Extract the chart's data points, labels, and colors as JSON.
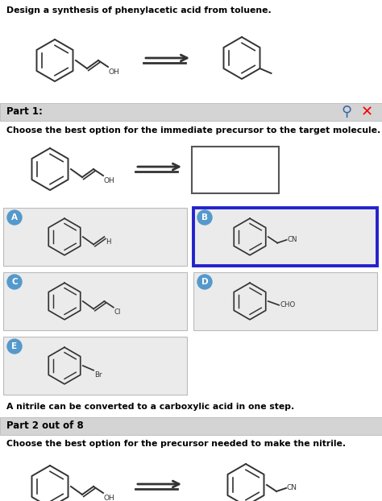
{
  "bg_color": "#ffffff",
  "page_title": "Design a synthesis of phenylacetic acid from toluene.",
  "part1_label": "Part 1:",
  "part1_bg": "#d8d8d8",
  "question1": "Choose the best option for the immediate precursor to the target molecule.",
  "note1": "A nitrile can be converted to a carboxylic acid in one step.",
  "part2_label": "Part 2 out of 8",
  "part2_bg": "#d8d8d8",
  "question2": "Choose the best option for the precursor needed to make the nitrile.",
  "answer_b_border": "#2222cc",
  "answer_circle_bg": "#5599cc",
  "fig_width": 4.74,
  "fig_height": 6.22,
  "dpi": 100
}
